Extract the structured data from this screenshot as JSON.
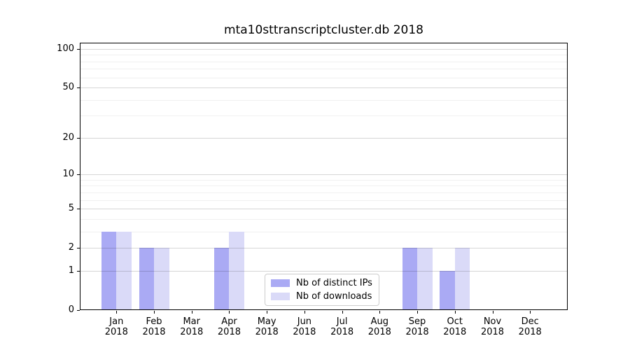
{
  "chart_data": {
    "type": "bar",
    "title": "mta10sttranscriptcluster.db 2018",
    "categories": [
      "Jan",
      "Feb",
      "Mar",
      "Apr",
      "May",
      "Jun",
      "Jul",
      "Aug",
      "Sep",
      "Oct",
      "Nov",
      "Dec"
    ],
    "category_sublabel": "2018",
    "series": [
      {
        "name": "Nb of distinct IPs",
        "color": "#aaaaf4",
        "values": [
          3,
          2,
          0,
          2,
          0,
          0,
          0,
          0,
          2,
          1,
          0,
          0
        ]
      },
      {
        "name": "Nb of downloads",
        "color": "#dadaf8",
        "values": [
          3,
          2,
          0,
          3,
          0,
          0,
          0,
          0,
          2,
          2,
          0,
          0
        ]
      }
    ],
    "xlabel": "",
    "ylabel": "",
    "yscale": "log1p",
    "ylim": [
      0,
      113
    ],
    "yticks": [
      0,
      1,
      2,
      5,
      10,
      20,
      50,
      100
    ],
    "yticks_minor": [
      3,
      4,
      6,
      7,
      8,
      9,
      30,
      40,
      60,
      70,
      80,
      90
    ],
    "grid": "horizontal",
    "legend_position": "lower-center"
  }
}
